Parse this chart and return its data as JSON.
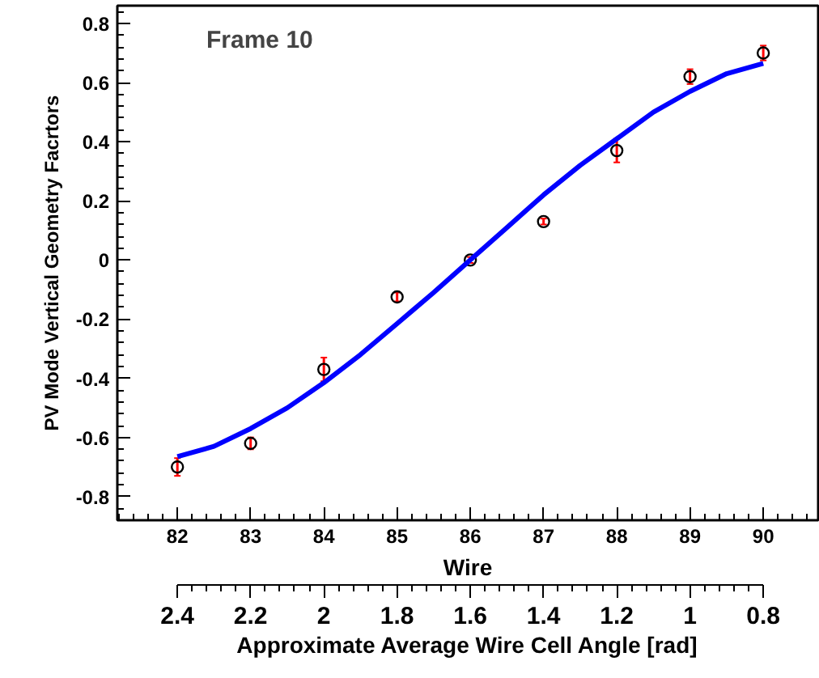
{
  "chart_data": {
    "type": "scatter",
    "title": "Frame 10",
    "xlabel": "Wire",
    "ylabel": "PV Mode Vertical Geometry Facrtors",
    "x2label": "Approximate Average Wire Cell Angle [rad]",
    "x": [
      82,
      83,
      84,
      85,
      86,
      87,
      88,
      89,
      90
    ],
    "series": [
      {
        "color": "#000000",
        "marker": "circle",
        "values": [
          -0.7,
          -0.62,
          -0.37,
          -0.125,
          0.0,
          0.13,
          0.37,
          0.62,
          0.7
        ],
        "errors": [
          0.03,
          0.02,
          0.04,
          0.015,
          0.01,
          0.01,
          0.04,
          0.025,
          0.025
        ]
      },
      {
        "type": "line",
        "color": "#0000ff",
        "x": [
          82,
          82.5,
          83,
          83.5,
          84,
          84.5,
          85,
          85.5,
          86,
          86.5,
          87,
          87.5,
          88,
          88.5,
          89,
          89.5,
          90
        ],
        "values": [
          -0.665,
          -0.63,
          -0.57,
          -0.5,
          -0.415,
          -0.32,
          -0.215,
          -0.11,
          0.0,
          0.11,
          0.22,
          0.32,
          0.41,
          0.5,
          0.57,
          0.63,
          0.665
        ]
      }
    ],
    "xlim": [
      81.18,
      90.75
    ],
    "xticks": [
      82,
      83,
      84,
      85,
      86,
      87,
      88,
      89,
      90
    ],
    "ylim": [
      -0.88,
      0.86
    ],
    "yticks": [
      -0.8,
      -0.6,
      -0.4,
      -0.2,
      0,
      0.2,
      0.4,
      0.6,
      0.8
    ],
    "x2lim": [
      2.564,
      0.65
    ],
    "x2ticks": [
      2.4,
      2.2,
      2,
      1.8,
      1.6,
      1.4,
      1.2,
      1,
      0.8
    ],
    "grid": false
  }
}
